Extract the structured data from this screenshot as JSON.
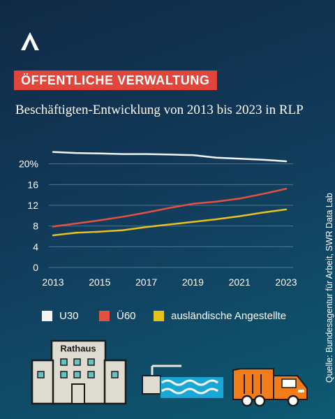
{
  "header": {
    "logo": "brand-logo-chevron",
    "category_tag": "ÖFFENTLICHE VERWALTUNG",
    "subtitle": "Beschäftigten-Entwicklung von 2013 bis 2023 in RLP"
  },
  "source": "Quelle: Bundesagentur für Arbeit, SWR Data Lab",
  "colors": {
    "tag": "#e2453a",
    "U30": "#f4f4f4",
    "Ü60": "#e5503f",
    "auslaendisch": "#e8c21a"
  },
  "chart_data": {
    "type": "line",
    "x": [
      2013,
      2014,
      2015,
      2016,
      2017,
      2018,
      2019,
      2020,
      2021,
      2022,
      2023
    ],
    "series": [
      {
        "name": "U30",
        "color": "#f4f4f4",
        "values": [
          22.3,
          22.1,
          22.0,
          21.9,
          21.9,
          21.8,
          21.7,
          21.2,
          21.0,
          20.8,
          20.5
        ]
      },
      {
        "name": "Ü60",
        "color": "#e5503f",
        "values": [
          7.9,
          8.5,
          9.1,
          9.8,
          10.6,
          11.5,
          12.3,
          12.7,
          13.3,
          14.2,
          15.2
        ]
      },
      {
        "name": "ausländische Angestellte",
        "color": "#e8c21a",
        "values": [
          6.2,
          6.7,
          6.9,
          7.2,
          7.8,
          8.3,
          8.8,
          9.3,
          9.9,
          10.6,
          11.2
        ]
      }
    ],
    "yticks": [
      "0",
      "4",
      "8",
      "12",
      "16",
      "20%"
    ],
    "xticks": [
      "2013",
      "2015",
      "2017",
      "2019",
      "2021",
      "2023"
    ],
    "ylim": [
      0,
      24
    ],
    "grid": "horizontal",
    "legend_position": "bottom"
  },
  "illustration": {
    "building_label": "Rathaus",
    "icons": [
      "town-hall-icon",
      "water-treatment-icon",
      "garbage-truck-icon"
    ]
  }
}
